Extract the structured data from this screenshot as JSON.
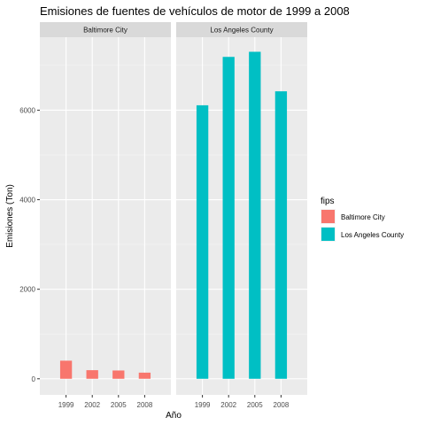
{
  "chart_data": {
    "type": "bar",
    "title": "Emisiones de fuentes de vehículos de motor de 1999 a 2008",
    "xlabel": "Año",
    "ylabel": "Emisiones (Ton)",
    "categories": [
      "1999",
      "2002",
      "2005",
      "2008"
    ],
    "ylim": [
      -360,
      7630
    ],
    "yticks": [
      0,
      2000,
      4000,
      6000
    ],
    "grid": true,
    "facets": [
      "Baltimore City",
      "Los Angeles County"
    ],
    "legend": {
      "title": "fips",
      "placement": "right",
      "entries": [
        "Baltimore City",
        "Los Angeles County"
      ]
    },
    "series": [
      {
        "name": "Baltimore City",
        "color": "#F8766D",
        "values": [
          404,
          192,
          185,
          137
        ]
      },
      {
        "name": "Los Angeles County",
        "color": "#00BFC4",
        "values": [
          6109,
          7190,
          7304,
          6421
        ]
      }
    ]
  }
}
